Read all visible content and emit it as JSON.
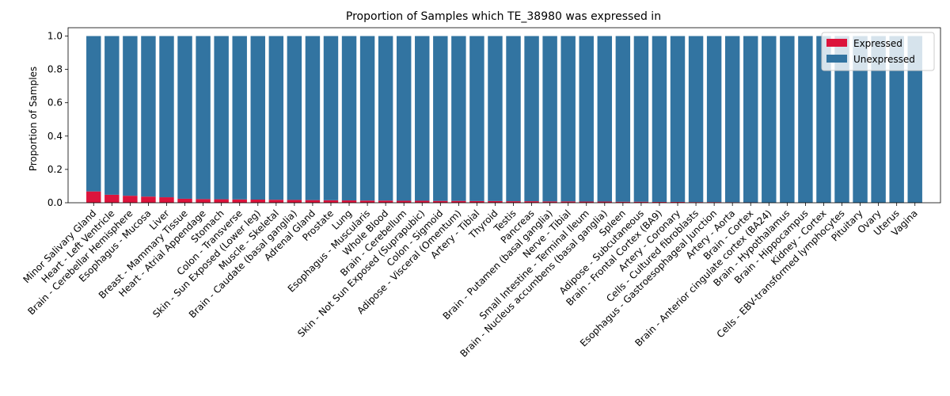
{
  "chart_data": {
    "type": "bar",
    "stacked": true,
    "title": "Proportion of Samples which TE_38980 was expressed in",
    "xlabel": "",
    "ylabel": "Proportion of Samples",
    "ylim": [
      0,
      1.05
    ],
    "yticks": [
      0.0,
      0.2,
      0.4,
      0.6,
      0.8,
      1.0
    ],
    "ytick_labels": [
      "0.0",
      "0.2",
      "0.4",
      "0.6",
      "0.8",
      "1.0"
    ],
    "grid": false,
    "legend_position": "top-right",
    "categories": [
      "Minor Salivary Gland",
      "Heart - Left Ventricle",
      "Brain - Cerebellar Hemisphere",
      "Esophagus - Mucosa",
      "Liver",
      "Breast - Mammary Tissue",
      "Heart - Atrial Appendage",
      "Stomach",
      "Colon - Transverse",
      "Skin - Sun Exposed (Lower leg)",
      "Muscle - Skeletal",
      "Brain - Caudate (basal ganglia)",
      "Adrenal Gland",
      "Prostate",
      "Lung",
      "Esophagus - Muscularis",
      "Whole Blood",
      "Brain - Cerebellum",
      "Skin - Not Sun Exposed (Suprapubic)",
      "Colon - Sigmoid",
      "Adipose - Visceral (Omentum)",
      "Artery - Tibial",
      "Thyroid",
      "Testis",
      "Pancreas",
      "Brain - Putamen (basal ganglia)",
      "Nerve - Tibial",
      "Small Intestine - Terminal Ileum",
      "Brain - Nucleus accumbens (basal ganglia)",
      "Spleen",
      "Adipose - Subcutaneous",
      "Brain - Frontal Cortex (BA9)",
      "Artery - Coronary",
      "Cells - Cultured fibroblasts",
      "Esophagus - Gastroesophageal Junction",
      "Artery - Aorta",
      "Brain - Cortex",
      "Brain - Anterior cingulate cortex (BA24)",
      "Brain - Hypothalamus",
      "Brain - Hippocampus",
      "Kidney - Cortex",
      "Cells - EBV-transformed lymphocytes",
      "Pituitary",
      "Ovary",
      "Uterus",
      "Vagina"
    ],
    "series": [
      {
        "name": "Expressed",
        "color": "#dc143c",
        "values": [
          0.068,
          0.048,
          0.042,
          0.037,
          0.033,
          0.024,
          0.022,
          0.021,
          0.02,
          0.019,
          0.018,
          0.017,
          0.016,
          0.015,
          0.014,
          0.013,
          0.013,
          0.012,
          0.012,
          0.011,
          0.011,
          0.01,
          0.01,
          0.009,
          0.009,
          0.008,
          0.008,
          0.007,
          0.007,
          0.006,
          0.006,
          0.005,
          0.005,
          0.004,
          0.004,
          0.003,
          0.002,
          0.0,
          0.0,
          0.0,
          0.0,
          0.0,
          0.0,
          0.0,
          0.0,
          0.0
        ]
      },
      {
        "name": "Unexpressed",
        "color": "#3274a1",
        "values": [
          0.932,
          0.952,
          0.958,
          0.963,
          0.967,
          0.976,
          0.978,
          0.979,
          0.98,
          0.981,
          0.982,
          0.983,
          0.984,
          0.985,
          0.986,
          0.987,
          0.987,
          0.988,
          0.988,
          0.989,
          0.989,
          0.99,
          0.99,
          0.991,
          0.991,
          0.992,
          0.992,
          0.993,
          0.993,
          0.994,
          0.994,
          0.995,
          0.995,
          0.996,
          0.996,
          0.997,
          0.998,
          1.0,
          1.0,
          1.0,
          1.0,
          1.0,
          1.0,
          1.0,
          1.0,
          1.0
        ]
      }
    ]
  }
}
